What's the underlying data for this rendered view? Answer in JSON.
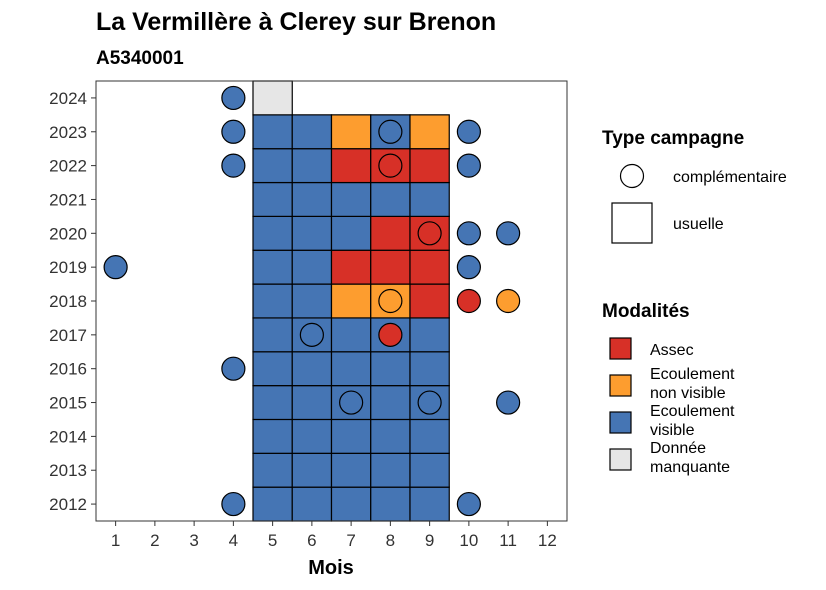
{
  "chart_data": {
    "type": "heatmap",
    "title": "La Vermillère à Clerey sur Brenon",
    "subtitle": "A5340001",
    "xlabel": "Mois",
    "ylabel": "",
    "x_ticks": [
      "1",
      "2",
      "3",
      "4",
      "5",
      "6",
      "7",
      "8",
      "9",
      "10",
      "11",
      "12"
    ],
    "y_ticks": [
      "2012",
      "2013",
      "2014",
      "2015",
      "2016",
      "2017",
      "2018",
      "2019",
      "2020",
      "2021",
      "2022",
      "2023",
      "2024"
    ],
    "xlim": [
      0.5,
      12.5
    ],
    "ylim": [
      2011.5,
      2024.5
    ],
    "grid": false,
    "legend_position": "right",
    "colors": {
      "assec": "#d73027",
      "ecoulement_non_visible": "#fd9d2f",
      "ecoulement_visible": "#4575b4",
      "donnee_manquante": "#e6e6e6"
    },
    "legend_shape": {
      "title": "Type campagne",
      "items": [
        {
          "label": "complémentaire",
          "shape": "circle"
        },
        {
          "label": "usuelle",
          "shape": "square"
        }
      ]
    },
    "legend_color": {
      "title": "Modalités",
      "items": [
        {
          "key": "assec",
          "line1": "Assec",
          "line2": ""
        },
        {
          "key": "ecoulement_non_visible",
          "line1": "Ecoulement",
          "line2": "non visible"
        },
        {
          "key": "ecoulement_visible",
          "line1": "Ecoulement",
          "line2": "visible"
        },
        {
          "key": "donnee_manquante",
          "line1": "Donnée",
          "line2": "manquante"
        }
      ]
    },
    "usuelle": [
      {
        "year": 2012,
        "month": 5,
        "m": "ecoulement_visible"
      },
      {
        "year": 2012,
        "month": 6,
        "m": "ecoulement_visible"
      },
      {
        "year": 2012,
        "month": 7,
        "m": "ecoulement_visible"
      },
      {
        "year": 2012,
        "month": 8,
        "m": "ecoulement_visible"
      },
      {
        "year": 2012,
        "month": 9,
        "m": "ecoulement_visible"
      },
      {
        "year": 2013,
        "month": 5,
        "m": "ecoulement_visible"
      },
      {
        "year": 2013,
        "month": 6,
        "m": "ecoulement_visible"
      },
      {
        "year": 2013,
        "month": 7,
        "m": "ecoulement_visible"
      },
      {
        "year": 2013,
        "month": 8,
        "m": "ecoulement_visible"
      },
      {
        "year": 2013,
        "month": 9,
        "m": "ecoulement_visible"
      },
      {
        "year": 2014,
        "month": 5,
        "m": "ecoulement_visible"
      },
      {
        "year": 2014,
        "month": 6,
        "m": "ecoulement_visible"
      },
      {
        "year": 2014,
        "month": 7,
        "m": "ecoulement_visible"
      },
      {
        "year": 2014,
        "month": 8,
        "m": "ecoulement_visible"
      },
      {
        "year": 2014,
        "month": 9,
        "m": "ecoulement_visible"
      },
      {
        "year": 2015,
        "month": 5,
        "m": "ecoulement_visible"
      },
      {
        "year": 2015,
        "month": 6,
        "m": "ecoulement_visible"
      },
      {
        "year": 2015,
        "month": 7,
        "m": "ecoulement_visible"
      },
      {
        "year": 2015,
        "month": 8,
        "m": "ecoulement_visible"
      },
      {
        "year": 2015,
        "month": 9,
        "m": "ecoulement_visible"
      },
      {
        "year": 2016,
        "month": 5,
        "m": "ecoulement_visible"
      },
      {
        "year": 2016,
        "month": 6,
        "m": "ecoulement_visible"
      },
      {
        "year": 2016,
        "month": 7,
        "m": "ecoulement_visible"
      },
      {
        "year": 2016,
        "month": 8,
        "m": "ecoulement_visible"
      },
      {
        "year": 2016,
        "month": 9,
        "m": "ecoulement_visible"
      },
      {
        "year": 2017,
        "month": 5,
        "m": "ecoulement_visible"
      },
      {
        "year": 2017,
        "month": 6,
        "m": "ecoulement_visible"
      },
      {
        "year": 2017,
        "month": 7,
        "m": "ecoulement_visible"
      },
      {
        "year": 2017,
        "month": 8,
        "m": "ecoulement_visible"
      },
      {
        "year": 2017,
        "month": 9,
        "m": "ecoulement_visible"
      },
      {
        "year": 2018,
        "month": 5,
        "m": "ecoulement_visible"
      },
      {
        "year": 2018,
        "month": 6,
        "m": "ecoulement_visible"
      },
      {
        "year": 2018,
        "month": 7,
        "m": "ecoulement_non_visible"
      },
      {
        "year": 2018,
        "month": 8,
        "m": "ecoulement_non_visible"
      },
      {
        "year": 2018,
        "month": 9,
        "m": "assec"
      },
      {
        "year": 2019,
        "month": 5,
        "m": "ecoulement_visible"
      },
      {
        "year": 2019,
        "month": 6,
        "m": "ecoulement_visible"
      },
      {
        "year": 2019,
        "month": 7,
        "m": "assec"
      },
      {
        "year": 2019,
        "month": 8,
        "m": "assec"
      },
      {
        "year": 2019,
        "month": 9,
        "m": "assec"
      },
      {
        "year": 2020,
        "month": 5,
        "m": "ecoulement_visible"
      },
      {
        "year": 2020,
        "month": 6,
        "m": "ecoulement_visible"
      },
      {
        "year": 2020,
        "month": 7,
        "m": "ecoulement_visible"
      },
      {
        "year": 2020,
        "month": 8,
        "m": "assec"
      },
      {
        "year": 2020,
        "month": 9,
        "m": "assec"
      },
      {
        "year": 2021,
        "month": 5,
        "m": "ecoulement_visible"
      },
      {
        "year": 2021,
        "month": 6,
        "m": "ecoulement_visible"
      },
      {
        "year": 2021,
        "month": 7,
        "m": "ecoulement_visible"
      },
      {
        "year": 2021,
        "month": 8,
        "m": "ecoulement_visible"
      },
      {
        "year": 2021,
        "month": 9,
        "m": "ecoulement_visible"
      },
      {
        "year": 2022,
        "month": 5,
        "m": "ecoulement_visible"
      },
      {
        "year": 2022,
        "month": 6,
        "m": "ecoulement_visible"
      },
      {
        "year": 2022,
        "month": 7,
        "m": "assec"
      },
      {
        "year": 2022,
        "month": 8,
        "m": "assec"
      },
      {
        "year": 2022,
        "month": 9,
        "m": "assec"
      },
      {
        "year": 2023,
        "month": 5,
        "m": "ecoulement_visible"
      },
      {
        "year": 2023,
        "month": 6,
        "m": "ecoulement_visible"
      },
      {
        "year": 2023,
        "month": 7,
        "m": "ecoulement_non_visible"
      },
      {
        "year": 2023,
        "month": 8,
        "m": "ecoulement_visible"
      },
      {
        "year": 2023,
        "month": 9,
        "m": "ecoulement_non_visible"
      },
      {
        "year": 2024,
        "month": 5,
        "m": "donnee_manquante"
      }
    ],
    "complementaire": [
      {
        "year": 2024,
        "month": 4,
        "m": "ecoulement_visible"
      },
      {
        "year": 2023,
        "month": 4,
        "m": "ecoulement_visible"
      },
      {
        "year": 2023,
        "month": 8,
        "m": "ecoulement_visible"
      },
      {
        "year": 2023,
        "month": 10,
        "m": "ecoulement_visible"
      },
      {
        "year": 2022,
        "month": 4,
        "m": "ecoulement_visible"
      },
      {
        "year": 2022,
        "month": 8,
        "m": "assec"
      },
      {
        "year": 2022,
        "month": 10,
        "m": "ecoulement_visible"
      },
      {
        "year": 2020,
        "month": 9,
        "m": "assec"
      },
      {
        "year": 2020,
        "month": 10,
        "m": "ecoulement_visible"
      },
      {
        "year": 2020,
        "month": 11,
        "m": "ecoulement_visible"
      },
      {
        "year": 2019,
        "month": 1,
        "m": "ecoulement_visible"
      },
      {
        "year": 2019,
        "month": 10,
        "m": "ecoulement_visible"
      },
      {
        "year": 2018,
        "month": 8,
        "m": "ecoulement_non_visible"
      },
      {
        "year": 2018,
        "month": 10,
        "m": "assec"
      },
      {
        "year": 2018,
        "month": 11,
        "m": "ecoulement_non_visible"
      },
      {
        "year": 2017,
        "month": 6,
        "m": "ecoulement_visible"
      },
      {
        "year": 2017,
        "month": 8,
        "m": "assec"
      },
      {
        "year": 2016,
        "month": 4,
        "m": "ecoulement_visible"
      },
      {
        "year": 2015,
        "month": 7,
        "m": "ecoulement_visible"
      },
      {
        "year": 2015,
        "month": 9,
        "m": "ecoulement_visible"
      },
      {
        "year": 2015,
        "month": 11,
        "m": "ecoulement_visible"
      },
      {
        "year": 2012,
        "month": 4,
        "m": "ecoulement_visible"
      },
      {
        "year": 2012,
        "month": 10,
        "m": "ecoulement_visible"
      }
    ]
  }
}
